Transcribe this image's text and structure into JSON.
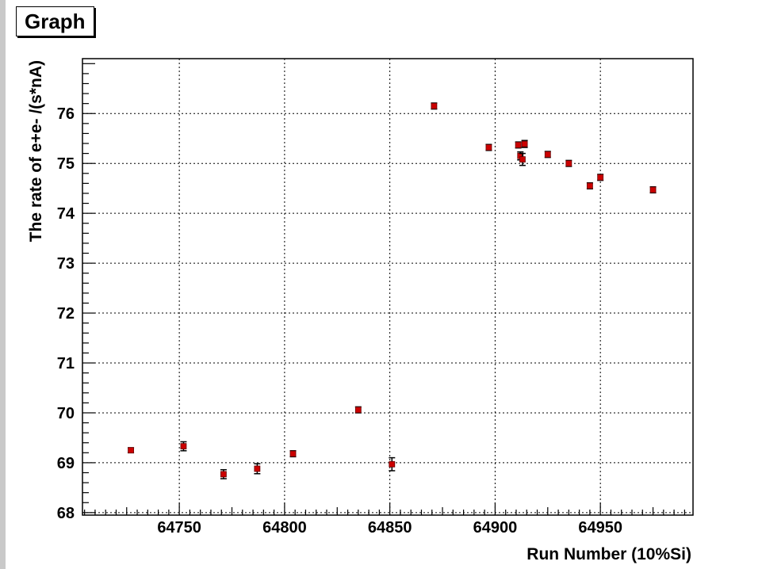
{
  "title": "Graph",
  "chart_data": {
    "type": "scatter",
    "title": "Graph",
    "xlabel": "Run Number (10%Si)",
    "ylabel": "The rate of e+e- /(s*nA)",
    "xlim": [
      64704,
      64994
    ],
    "ylim": [
      67.95,
      77.1
    ],
    "x_ticks": [
      64750,
      64800,
      64850,
      64900,
      64950
    ],
    "y_ticks": [
      68,
      69,
      70,
      71,
      72,
      73,
      74,
      75,
      76
    ],
    "grid": true,
    "marker_color": "#cc0000",
    "points": [
      {
        "x": 64727,
        "y": 69.25,
        "err": 0.05
      },
      {
        "x": 64752,
        "y": 69.33,
        "err": 0.09
      },
      {
        "x": 64771,
        "y": 68.77,
        "err": 0.09
      },
      {
        "x": 64787,
        "y": 68.88,
        "err": 0.1
      },
      {
        "x": 64804,
        "y": 69.18,
        "err": 0.06
      },
      {
        "x": 64835,
        "y": 70.06,
        "err": 0.06
      },
      {
        "x": 64851,
        "y": 68.97,
        "err": 0.13
      },
      {
        "x": 64871,
        "y": 76.15,
        "err": 0.06
      },
      {
        "x": 64897,
        "y": 75.32,
        "err": 0.06
      },
      {
        "x": 64911,
        "y": 75.37,
        "err": 0.06
      },
      {
        "x": 64912,
        "y": 75.15,
        "err": 0.08
      },
      {
        "x": 64913,
        "y": 75.08,
        "err": 0.12
      },
      {
        "x": 64914,
        "y": 75.39,
        "err": 0.07
      },
      {
        "x": 64925,
        "y": 75.18,
        "err": 0.06
      },
      {
        "x": 64935,
        "y": 75.0,
        "err": 0.06
      },
      {
        "x": 64945,
        "y": 74.55,
        "err": 0.06
      },
      {
        "x": 64950,
        "y": 74.72,
        "err": 0.06
      },
      {
        "x": 64975,
        "y": 74.47,
        "err": 0.06
      }
    ]
  }
}
